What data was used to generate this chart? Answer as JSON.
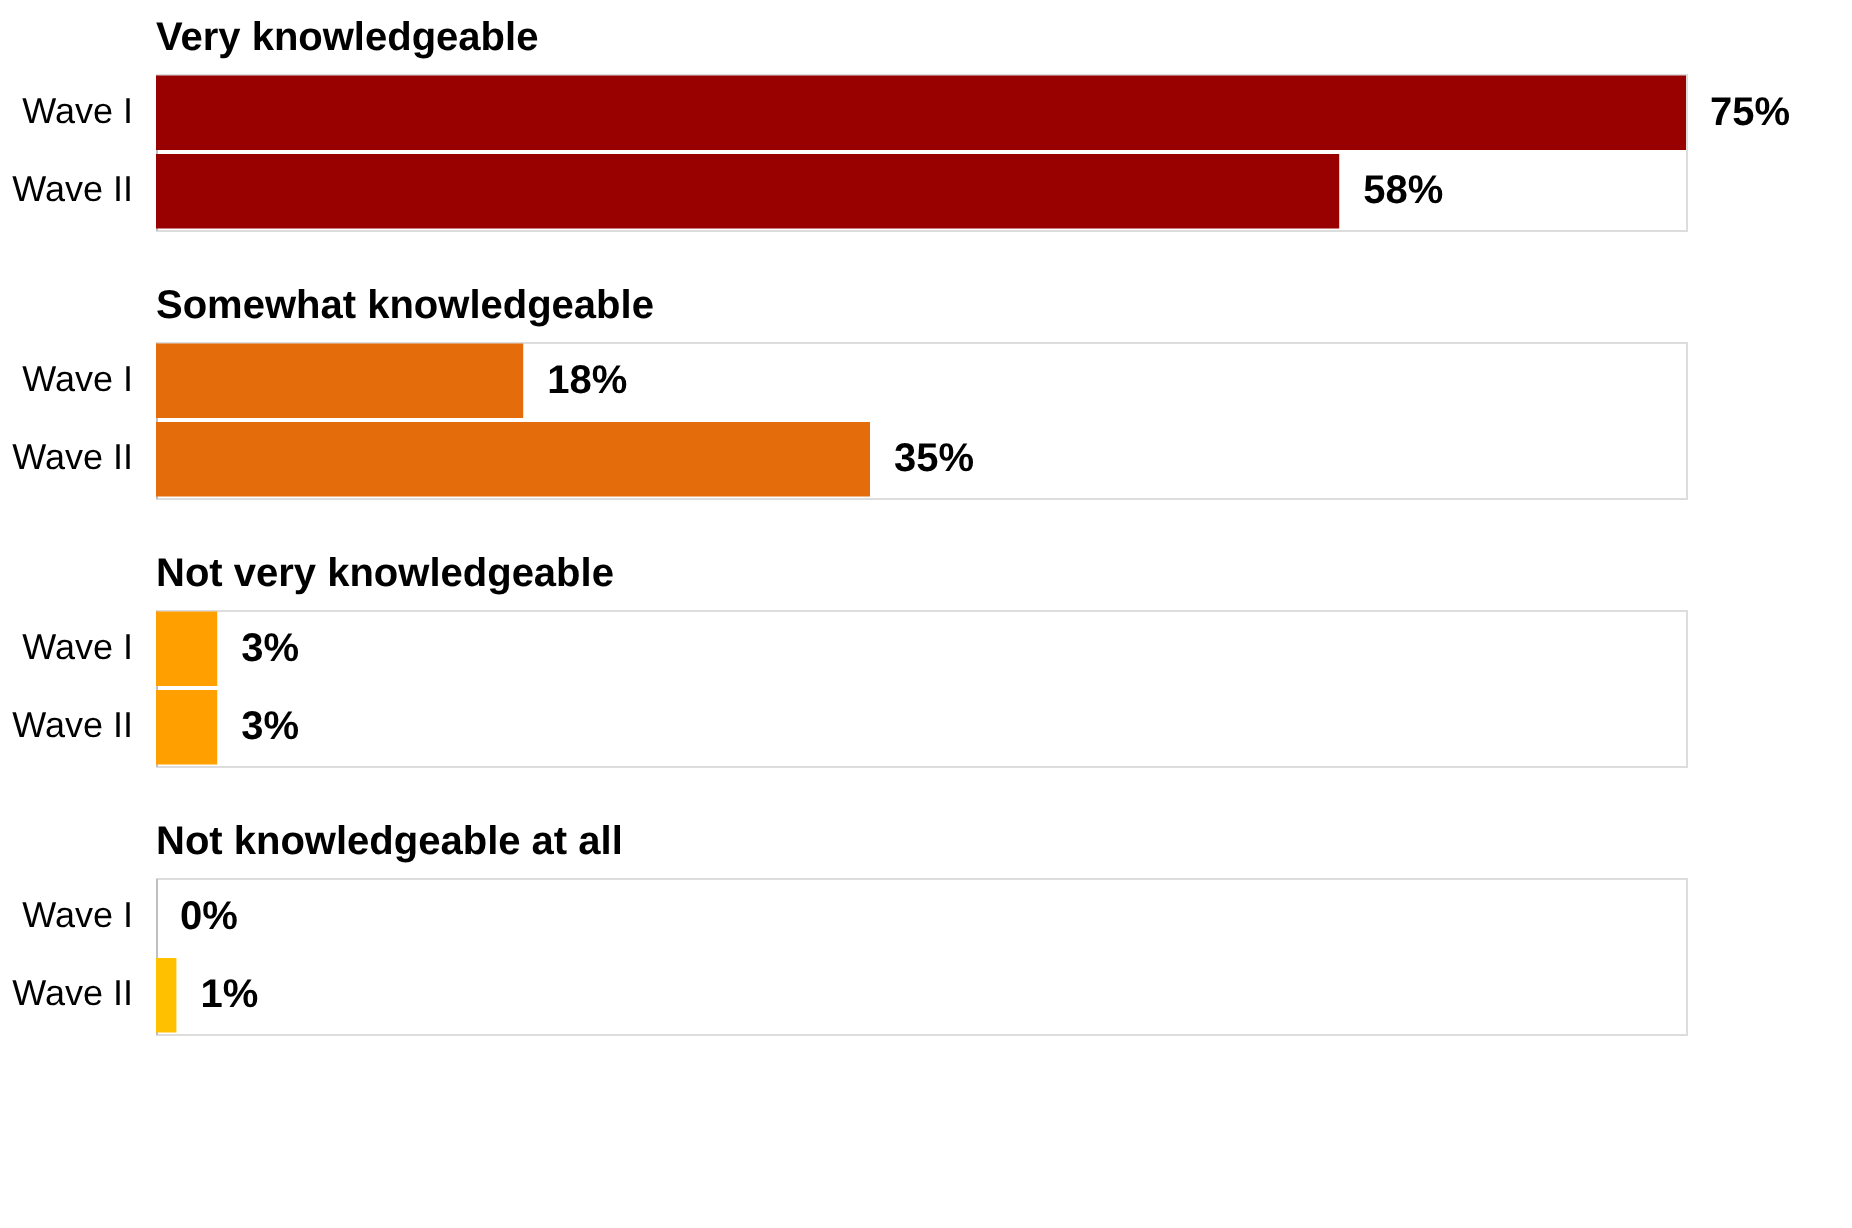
{
  "chart_data": [
    {
      "type": "bar",
      "orientation": "horizontal",
      "title": "Very knowledgeable",
      "categories": [
        "Wave I",
        "Wave II"
      ],
      "values": [
        75,
        58
      ],
      "value_labels": [
        "75%",
        "58%"
      ],
      "color": "#990000"
    },
    {
      "type": "bar",
      "orientation": "horizontal",
      "title": "Somewhat knowledgeable",
      "categories": [
        "Wave I",
        "Wave II"
      ],
      "values": [
        18,
        35
      ],
      "value_labels": [
        "18%",
        "35%"
      ],
      "color": "#e46c0a"
    },
    {
      "type": "bar",
      "orientation": "horizontal",
      "title": "Not very knowledgeable",
      "categories": [
        "Wave I",
        "Wave II"
      ],
      "values": [
        3,
        3
      ],
      "value_labels": [
        "3%",
        "3%"
      ],
      "color": "#ffa000"
    },
    {
      "type": "bar",
      "orientation": "horizontal",
      "title": "Not knowledgeable at all",
      "categories": [
        "Wave I",
        "Wave II"
      ],
      "values": [
        0,
        1
      ],
      "value_labels": [
        "0%",
        "1%"
      ],
      "color": "#ffc000"
    }
  ]
}
